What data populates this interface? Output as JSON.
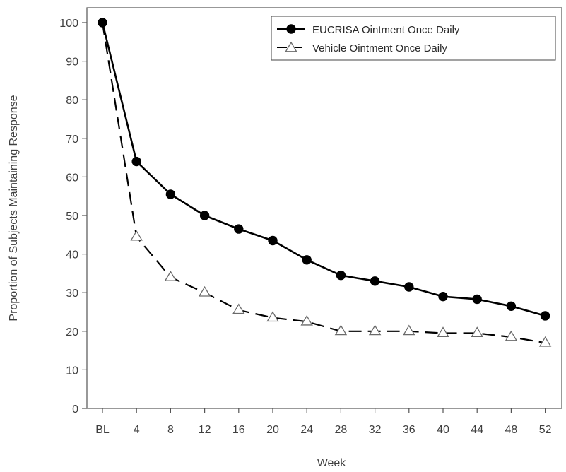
{
  "chart_data": {
    "type": "line",
    "xlabel": "Week",
    "ylabel": "Proportion of Subjects Maintaining Response",
    "categories": [
      "BL",
      "4",
      "8",
      "12",
      "16",
      "20",
      "24",
      "28",
      "32",
      "36",
      "40",
      "44",
      "48",
      "52"
    ],
    "ylim": [
      0,
      100
    ],
    "yticks": [
      0,
      10,
      20,
      30,
      40,
      50,
      60,
      70,
      80,
      90,
      100
    ],
    "grid": false,
    "legend": "top-right",
    "series": [
      {
        "name": "EUCRISA Ointment Once Daily",
        "values": [
          100,
          64,
          55.5,
          50,
          46.5,
          43.5,
          38.5,
          34.5,
          33,
          31.5,
          29,
          28.3,
          26.5,
          24
        ],
        "marker": "filled-circle",
        "line_style": "solid",
        "color": "#000000"
      },
      {
        "name": "Vehicle Ointment Once Daily",
        "values": [
          100,
          44.5,
          34,
          30,
          25.5,
          23.5,
          22.5,
          20,
          20,
          20,
          19.5,
          19.5,
          18.5,
          17
        ],
        "marker": "open-triangle",
        "line_style": "dashed",
        "color": "#000000",
        "marker_color": "#6a6a6a"
      }
    ]
  }
}
